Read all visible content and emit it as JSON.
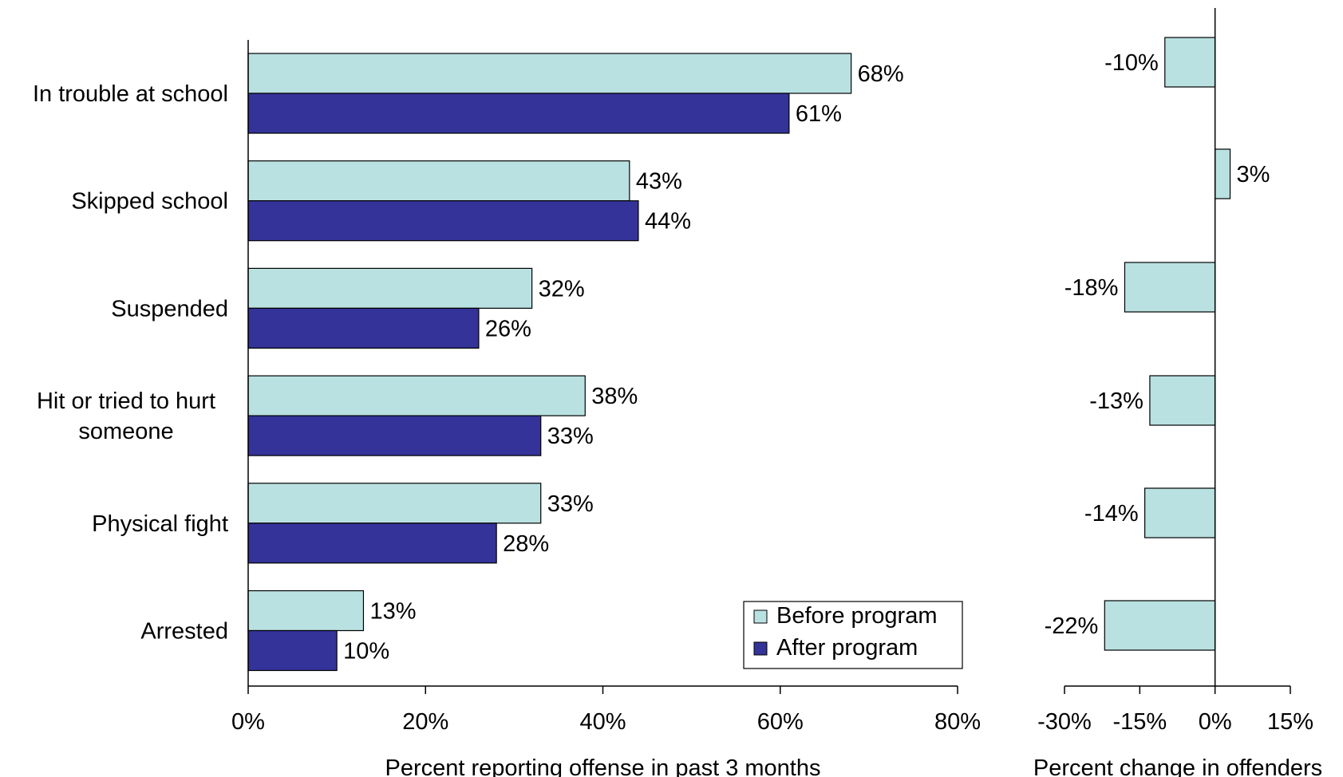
{
  "chart_data": [
    {
      "type": "bar",
      "orientation": "horizontal",
      "categories": [
        [
          "In trouble at school"
        ],
        [
          "Skipped school"
        ],
        [
          "Suspended"
        ],
        [
          "Hit or tried  to hurt",
          "someone"
        ],
        [
          "Physical fight"
        ],
        [
          "Arrested"
        ]
      ],
      "series": [
        {
          "name": "Before program",
          "color": "#b9e1e1",
          "values": [
            68,
            43,
            32,
            38,
            33,
            13
          ],
          "labels": [
            "68%",
            "43%",
            "32%",
            "38%",
            "33%",
            "13%"
          ]
        },
        {
          "name": "After program",
          "color": "#333399",
          "values": [
            61,
            44,
            26,
            33,
            28,
            10
          ],
          "labels": [
            "61%",
            "44%",
            "26%",
            "33%",
            "28%",
            "10%"
          ]
        }
      ],
      "xlim": [
        0,
        80
      ],
      "xticks": [
        0,
        20,
        40,
        60,
        80
      ],
      "xtick_labels": [
        "0%",
        "20%",
        "40%",
        "60%",
        "80%"
      ],
      "xlabel": "Percent reporting offense in past 3 months",
      "legend": {
        "position": "bottom-right",
        "entries": [
          "Before program",
          "After program"
        ]
      },
      "grid": false
    },
    {
      "type": "bar",
      "orientation": "horizontal",
      "series": [
        {
          "name": "",
          "color": "#b9e1e1",
          "values": [
            -10,
            3,
            -18,
            -13,
            -14,
            -22
          ],
          "labels": [
            "-10%",
            "3%",
            "-18%",
            "-13%",
            "-14%",
            "-22%"
          ]
        }
      ],
      "xlim": [
        -30,
        15
      ],
      "xticks": [
        -30,
        -15,
        0,
        15
      ],
      "xtick_labels": [
        "-30%",
        "-15%",
        "0%",
        "15%"
      ],
      "xlabel": "Percent change in offenders",
      "grid": false
    }
  ]
}
